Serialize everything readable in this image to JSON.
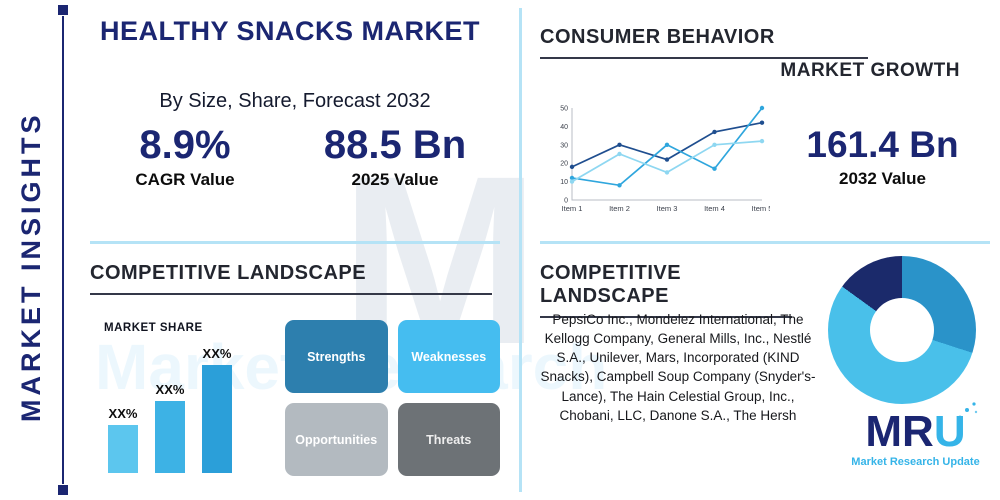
{
  "header": {
    "title": "HEALTHY SNACKS MARKET",
    "subtitle": "By Size, Share, Forecast 2032"
  },
  "sidebar": {
    "label": "MARKET INSIGHTS"
  },
  "watermark": {
    "letter": "M",
    "text": "Market Research"
  },
  "stats": {
    "cagr": {
      "value": "8.9%",
      "label": "CAGR Value"
    },
    "y2025": {
      "value": "88.5 Bn",
      "label": "2025 Value"
    },
    "y2032": {
      "value": "161.4 Bn",
      "label": "2032 Value"
    }
  },
  "sections": {
    "consumer_behavior": "CONSUMER BEHAVIOR",
    "market_growth": "MARKET GROWTH",
    "competitive_landscape_left": "COMPETITIVE LANDSCAPE",
    "competitive_landscape_right": "COMPETITIVE LANDSCAPE"
  },
  "swot": {
    "strengths": "Strengths",
    "weaknesses": "Weaknesses",
    "opportunities": "Opportunities",
    "threats": "Threats"
  },
  "companies_text": "PepsiCo Inc., Mondelez International, The Kellogg Company, General Mills, Inc., Nestlé S.A., Unilever, Mars, Incorporated (KIND Snacks), Campbell Soup Company (Snyder's-Lance), The Hain Celestial Group, Inc., Chobani, LLC, Danone S.A., The Hersh",
  "logo": {
    "mr": "MR",
    "u": "U",
    "tagline": "Market Research Update"
  },
  "colors": {
    "navy": "#1b2672",
    "accent_light_blue": "#45bdf0",
    "divider_blue": "#b5e3f6",
    "heading_dark": "#23262f"
  },
  "chart_data": [
    {
      "id": "market-share-bars",
      "type": "bar",
      "title": "MARKET SHARE",
      "categories": [
        "",
        "",
        ""
      ],
      "labels": [
        "XX%",
        "XX%",
        "XX%"
      ],
      "values": [
        20,
        30,
        45
      ],
      "ylim": [
        0,
        50
      ],
      "colors": [
        "#5cc6ee",
        "#3db2e5",
        "#2b9fd9"
      ],
      "grid": false,
      "legend": "none"
    },
    {
      "id": "consumer-behavior-lines",
      "type": "line",
      "categories": [
        "Item 1",
        "Item 2",
        "Item 3",
        "Item 4",
        "Item 5"
      ],
      "yticks": [
        0,
        10,
        20,
        30,
        40,
        50
      ],
      "ylim": [
        0,
        50
      ],
      "series": [
        {
          "name": "series-navy",
          "color": "#1f4e8f",
          "values": [
            18,
            30,
            22,
            37,
            42
          ]
        },
        {
          "name": "series-blue",
          "color": "#2fa6dd",
          "values": [
            12,
            8,
            30,
            17,
            50
          ]
        },
        {
          "name": "series-cyan",
          "color": "#8ed7f1",
          "values": [
            10,
            25,
            15,
            30,
            32
          ]
        }
      ],
      "grid": false,
      "legend": "none"
    },
    {
      "id": "company-share-donut",
      "type": "pie",
      "donut": true,
      "segments": [
        {
          "value": 30,
          "color": "#2a93c9"
        },
        {
          "value": 55,
          "color": "#49c0ea"
        },
        {
          "value": 15,
          "color": "#1b2a6b"
        }
      ]
    }
  ]
}
